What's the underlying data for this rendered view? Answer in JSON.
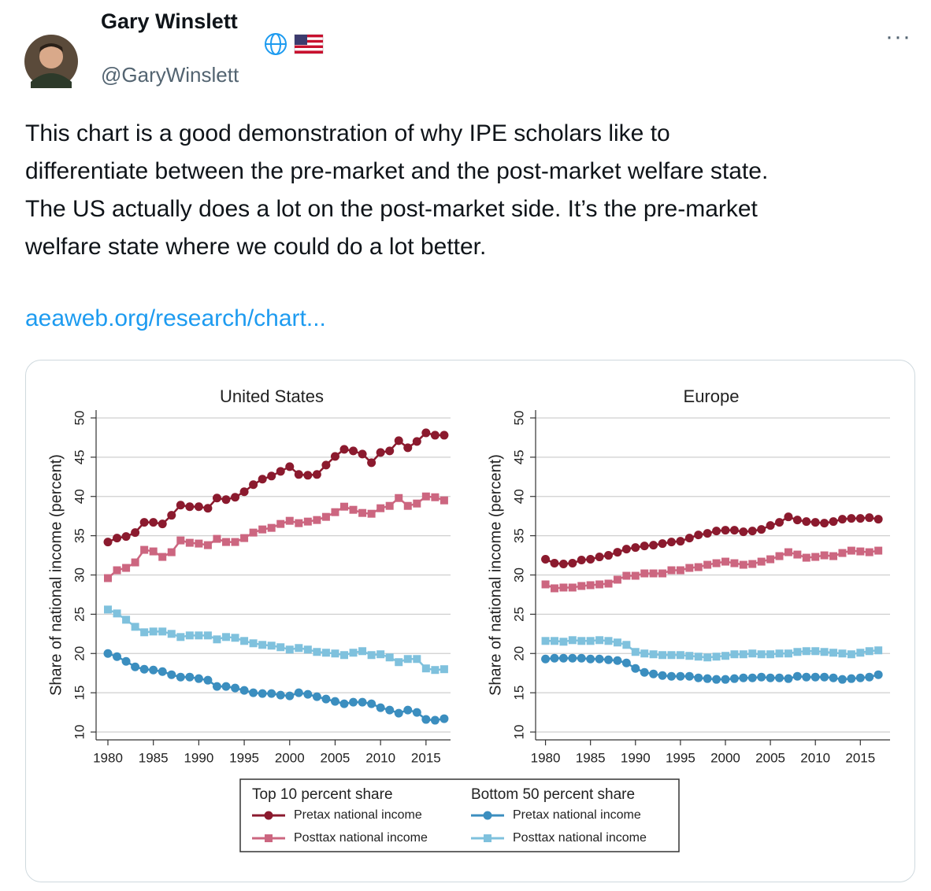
{
  "author": {
    "name": "Gary Winslett",
    "handle": "@GaryWinslett"
  },
  "text_lines": [
    "This chart is a good demonstration of why IPE scholars like to",
    "differentiate between the pre-market and the post-market welfare state.",
    "The US actually does a lot on the post-market side. It’s the pre-market",
    "welfare state where we could do a lot better."
  ],
  "link": "aeaweb.org/research/chart...",
  "legend_groups": [
    "Top 10 percent share",
    "Bottom 50 percent share"
  ],
  "chart_data": [
    {
      "type": "line",
      "title": "United States",
      "y_label": "Share of national income (percent)",
      "x": [
        1980,
        1981,
        1982,
        1983,
        1984,
        1985,
        1986,
        1987,
        1988,
        1989,
        1990,
        1991,
        1992,
        1993,
        1994,
        1995,
        1996,
        1997,
        1998,
        1999,
        2000,
        2001,
        2002,
        2003,
        2004,
        2005,
        2006,
        2007,
        2008,
        2009,
        2010,
        2011,
        2012,
        2013,
        2014,
        2015,
        2016,
        2017
      ],
      "xlim": [
        1978.7,
        2017.7
      ],
      "xticks": [
        1980,
        1985,
        1990,
        1995,
        2000,
        2005,
        2010,
        2015
      ],
      "ylim": [
        9,
        51
      ],
      "yticks": [
        10,
        15,
        20,
        25,
        30,
        35,
        40,
        45,
        50
      ],
      "grid": true,
      "series": [
        {
          "name": "Pretax national income",
          "color": "#8b1a2e",
          "marker": "circle",
          "values": [
            34.2,
            34.7,
            34.9,
            35.4,
            36.7,
            36.7,
            36.5,
            37.6,
            38.9,
            38.7,
            38.7,
            38.5,
            39.8,
            39.6,
            39.9,
            40.6,
            41.5,
            42.2,
            42.6,
            43.2,
            43.8,
            42.8,
            42.7,
            42.8,
            44.0,
            45.1,
            46.0,
            45.8,
            45.4,
            44.3,
            45.6,
            45.8,
            47.1,
            46.2,
            47.0,
            48.1,
            47.8,
            47.8
          ]
        },
        {
          "name": "Posttax national income",
          "color": "#cc6680",
          "marker": "square",
          "values": [
            29.6,
            30.6,
            30.9,
            31.6,
            33.2,
            33.0,
            32.3,
            32.9,
            34.4,
            34.1,
            34.0,
            33.8,
            34.6,
            34.2,
            34.2,
            34.7,
            35.4,
            35.8,
            36.0,
            36.5,
            36.9,
            36.6,
            36.8,
            37.0,
            37.4,
            38.0,
            38.7,
            38.3,
            37.9,
            37.8,
            38.5,
            38.8,
            39.8,
            38.8,
            39.1,
            40.0,
            39.9,
            39.5
          ]
        },
        {
          "name": "Pretax national income",
          "color": "#3b8ebf",
          "marker": "circle",
          "values": [
            20.0,
            19.6,
            19.0,
            18.3,
            18.0,
            17.9,
            17.7,
            17.3,
            17.0,
            17.0,
            16.8,
            16.6,
            15.8,
            15.8,
            15.6,
            15.3,
            15.0,
            14.9,
            14.9,
            14.7,
            14.6,
            15.0,
            14.8,
            14.5,
            14.2,
            13.9,
            13.6,
            13.8,
            13.8,
            13.6,
            13.1,
            12.8,
            12.4,
            12.8,
            12.5,
            11.6,
            11.5,
            11.7
          ]
        },
        {
          "name": "Posttax national income",
          "color": "#7fc1dd",
          "marker": "square",
          "values": [
            25.6,
            25.1,
            24.3,
            23.4,
            22.7,
            22.8,
            22.8,
            22.5,
            22.1,
            22.3,
            22.3,
            22.3,
            21.8,
            22.1,
            22.0,
            21.6,
            21.3,
            21.1,
            21.0,
            20.8,
            20.5,
            20.7,
            20.5,
            20.2,
            20.1,
            20.0,
            19.8,
            20.1,
            20.3,
            19.8,
            19.9,
            19.5,
            18.9,
            19.3,
            19.3,
            18.1,
            17.9,
            18.0
          ]
        }
      ]
    },
    {
      "type": "line",
      "title": "Europe",
      "y_label": "Share of national income (percent)",
      "x": [
        1980,
        1981,
        1982,
        1983,
        1984,
        1985,
        1986,
        1987,
        1988,
        1989,
        1990,
        1991,
        1992,
        1993,
        1994,
        1995,
        1996,
        1997,
        1998,
        1999,
        2000,
        2001,
        2002,
        2003,
        2004,
        2005,
        2006,
        2007,
        2008,
        2009,
        2010,
        2011,
        2012,
        2013,
        2014,
        2015,
        2016,
        2017
      ],
      "xlim": [
        1978.9,
        2018.3
      ],
      "xticks": [
        1980,
        1985,
        1990,
        1995,
        2000,
        2005,
        2010,
        2015
      ],
      "ylim": [
        9,
        51
      ],
      "yticks": [
        10,
        15,
        20,
        25,
        30,
        35,
        40,
        45,
        50
      ],
      "grid": true,
      "series": [
        {
          "color": "#8b1a2e",
          "marker": "circle",
          "values": [
            32.0,
            31.5,
            31.4,
            31.5,
            31.9,
            32.0,
            32.3,
            32.5,
            32.9,
            33.3,
            33.5,
            33.7,
            33.8,
            34.0,
            34.2,
            34.3,
            34.7,
            35.1,
            35.3,
            35.6,
            35.7,
            35.7,
            35.5,
            35.6,
            35.8,
            36.3,
            36.7,
            37.4,
            37.0,
            36.8,
            36.7,
            36.6,
            36.8,
            37.1,
            37.2,
            37.2,
            37.3,
            37.1
          ]
        },
        {
          "color": "#cc6680",
          "marker": "square",
          "values": [
            28.8,
            28.3,
            28.4,
            28.4,
            28.6,
            28.7,
            28.8,
            28.9,
            29.4,
            29.9,
            29.9,
            30.2,
            30.2,
            30.2,
            30.6,
            30.6,
            30.9,
            31.0,
            31.3,
            31.5,
            31.7,
            31.5,
            31.3,
            31.4,
            31.7,
            32.0,
            32.4,
            32.9,
            32.6,
            32.2,
            32.3,
            32.5,
            32.4,
            32.8,
            33.1,
            33.0,
            32.9,
            33.1
          ]
        },
        {
          "color": "#3b8ebf",
          "marker": "circle",
          "values": [
            19.3,
            19.4,
            19.4,
            19.4,
            19.4,
            19.3,
            19.3,
            19.2,
            19.1,
            18.8,
            18.1,
            17.6,
            17.4,
            17.2,
            17.1,
            17.1,
            17.1,
            16.9,
            16.8,
            16.7,
            16.7,
            16.8,
            16.9,
            16.9,
            17.0,
            16.9,
            16.9,
            16.8,
            17.1,
            17.0,
            17.0,
            17.0,
            16.9,
            16.7,
            16.8,
            16.9,
            17.0,
            17.3
          ]
        },
        {
          "color": "#7fc1dd",
          "marker": "square",
          "values": [
            21.6,
            21.6,
            21.5,
            21.7,
            21.6,
            21.6,
            21.7,
            21.6,
            21.4,
            21.1,
            20.2,
            20.0,
            19.9,
            19.8,
            19.8,
            19.8,
            19.7,
            19.6,
            19.5,
            19.6,
            19.7,
            19.9,
            19.9,
            20.0,
            19.9,
            19.9,
            20.0,
            20.0,
            20.2,
            20.3,
            20.3,
            20.2,
            20.1,
            20.0,
            19.9,
            20.1,
            20.3,
            20.4
          ]
        }
      ]
    }
  ]
}
